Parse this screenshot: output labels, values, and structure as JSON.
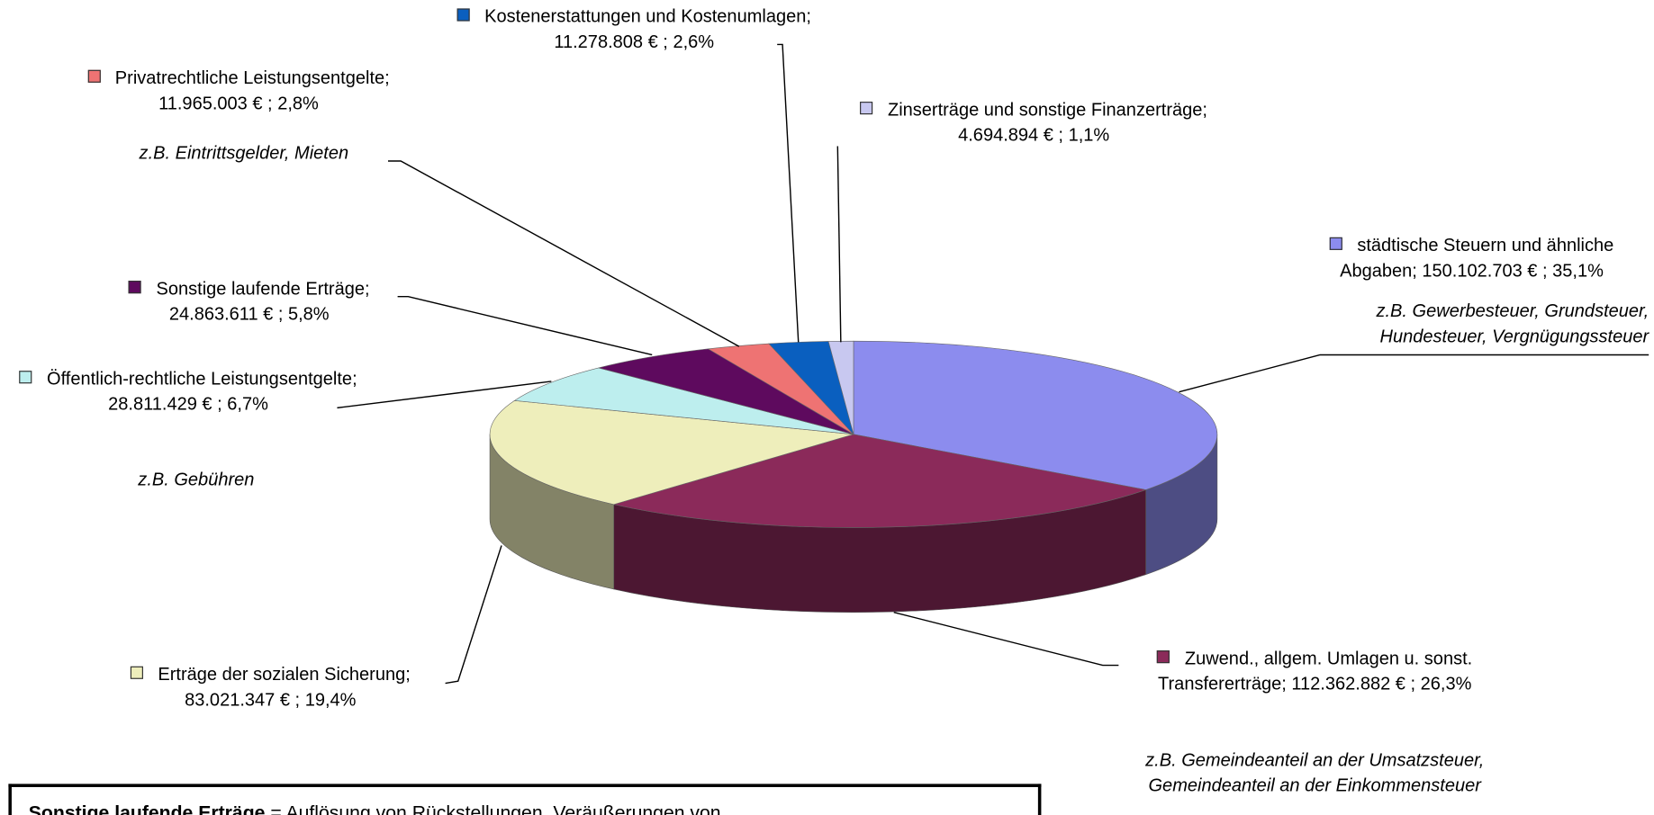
{
  "chart_data": {
    "type": "pie3d",
    "categories": [
      "städtische Steuern und ähnliche Abgaben;",
      "Zuwend., allgem. Umlagen u. sonst. Transfererträge;",
      "Erträge der sozialen Sicherung;",
      "Öffentlich-rechtliche Leistungsentgelte;",
      "Sonstige laufende Erträge;",
      "Privatrechtliche Leistungsentgelte;",
      "Kostenerstattungen und Kostenumlagen;",
      "Zinserträge und sonstige Finanzerträge;"
    ],
    "values": [
      150102703,
      112362882,
      83021347,
      28811429,
      24863611,
      11965003,
      11278808,
      4694894
    ],
    "value_labels": [
      "150.102.703 € ;",
      "112.362.882 € ;",
      "83.021.347 € ;",
      "28.811.429 € ;",
      "24.863.611 € ;",
      "11.965.003 € ;",
      "11.278.808 € ;",
      "4.694.894 € ;"
    ],
    "percent_labels": [
      "35,1%",
      "26,3%",
      "19,4%",
      "6,7%",
      "5,8%",
      "2,8%",
      "2,6%",
      "1,1%"
    ],
    "colors": [
      "#8c8cee",
      "#8b2a5a",
      "#eeeebb",
      "#bdeeee",
      "#5e0a5e",
      "#ee7373",
      "#0a5fbf",
      "#c8c8f0"
    ],
    "annotations": [
      "z.B. Gewerbesteuer, Grundsteuer, Hundesteuer, Vergnügungssteuer",
      "z.B. Gemeindeanteil an der Umsatzsteuer, Gemeindeanteil an der Einkommensteuer",
      "z.B. Gebühren",
      "z.B. Eintrittsgelder, Mieten"
    ]
  },
  "footnote": {
    "term": "Sonstige laufende Erträge",
    "text": "= Auflösung von Rückstellungen, Veräußerungen von"
  }
}
